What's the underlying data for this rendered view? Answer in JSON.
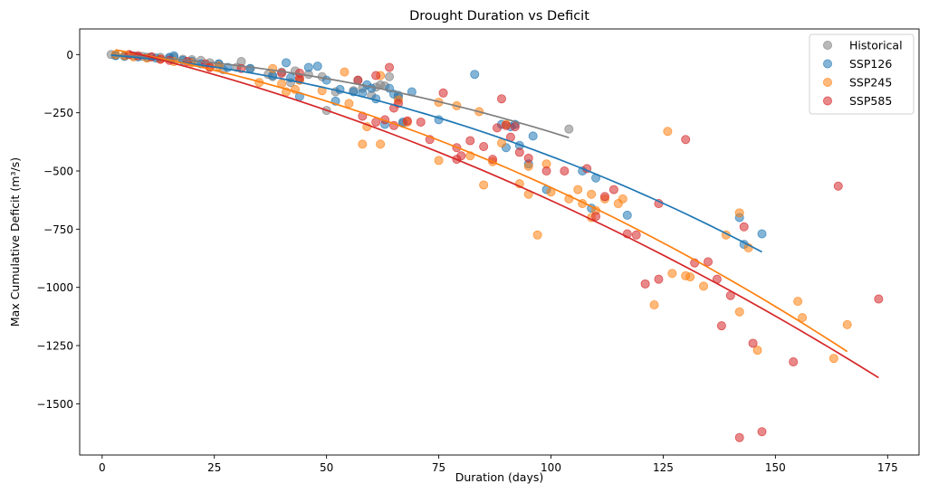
{
  "chart_data": {
    "type": "scatter",
    "title": "Drought Duration vs Deficit",
    "xlabel": "Duration (days)",
    "ylabel": "Max Cumulative Deficit (m³/s)",
    "xlim": [
      -5,
      182
    ],
    "ylim": [
      -1720,
      110
    ],
    "xticks": [
      0,
      25,
      50,
      75,
      100,
      125,
      150,
      175
    ],
    "yticks": [
      0,
      -250,
      -500,
      -750,
      -1000,
      -1250,
      -1500
    ],
    "xtick_labels": [
      "0",
      "25",
      "50",
      "75",
      "100",
      "125",
      "150",
      "175"
    ],
    "ytick_labels": [
      "0",
      "−250",
      "−500",
      "−750",
      "−1000",
      "−1250",
      "−1500"
    ],
    "legend_position": "top-right",
    "series": [
      {
        "name": "Historical",
        "color": "#7f7f7f",
        "points": [
          [
            2,
            0
          ],
          [
            3,
            -3
          ],
          [
            5,
            -5
          ],
          [
            7,
            -5
          ],
          [
            9,
            -8
          ],
          [
            11,
            -10
          ],
          [
            13,
            -12
          ],
          [
            15,
            -15
          ],
          [
            16,
            -12
          ],
          [
            18,
            -20
          ],
          [
            20,
            -22
          ],
          [
            22,
            -25
          ],
          [
            24,
            -35
          ],
          [
            26,
            -40
          ],
          [
            27,
            -65
          ],
          [
            30,
            -55
          ],
          [
            31,
            -30
          ],
          [
            33,
            -60
          ],
          [
            37,
            -85
          ],
          [
            38,
            -95
          ],
          [
            40,
            -75
          ],
          [
            42,
            -120
          ],
          [
            43,
            -70
          ],
          [
            44,
            -110
          ],
          [
            46,
            -85
          ],
          [
            49,
            -95
          ],
          [
            50,
            -240
          ],
          [
            52,
            -160
          ],
          [
            56,
            -155
          ],
          [
            57,
            -110
          ],
          [
            58,
            -145
          ],
          [
            60,
            -175
          ],
          [
            61,
            -140
          ],
          [
            62,
            -130
          ],
          [
            63,
            -135
          ],
          [
            64,
            -95
          ],
          [
            66,
            -185
          ],
          [
            67,
            -295
          ],
          [
            104,
            -320
          ]
        ],
        "fit_x": [
          2,
          104
        ],
        "fit_coeffs": [
          0,
          -0.8,
          -0.0253
        ]
      },
      {
        "name": "SSP126",
        "color": "#1f77b4",
        "points": [
          [
            3,
            -5
          ],
          [
            5,
            -8
          ],
          [
            8,
            -10
          ],
          [
            10,
            -12
          ],
          [
            12,
            -15
          ],
          [
            15,
            -12
          ],
          [
            16,
            -5
          ],
          [
            18,
            -25
          ],
          [
            20,
            -30
          ],
          [
            22,
            -40
          ],
          [
            26,
            -40
          ],
          [
            28,
            -55
          ],
          [
            33,
            -60
          ],
          [
            38,
            -90
          ],
          [
            41,
            -35
          ],
          [
            42,
            -100
          ],
          [
            44,
            -180
          ],
          [
            46,
            -55
          ],
          [
            48,
            -50
          ],
          [
            50,
            -110
          ],
          [
            52,
            -200
          ],
          [
            53,
            -150
          ],
          [
            56,
            -160
          ],
          [
            58,
            -165
          ],
          [
            59,
            -130
          ],
          [
            60,
            -145
          ],
          [
            61,
            -190
          ],
          [
            63,
            -300
          ],
          [
            64,
            -145
          ],
          [
            65,
            -170
          ],
          [
            66,
            -175
          ],
          [
            67,
            -290
          ],
          [
            69,
            -160
          ],
          [
            75,
            -280
          ],
          [
            83,
            -85
          ],
          [
            89,
            -300
          ],
          [
            90,
            -400
          ],
          [
            91,
            -310
          ],
          [
            92,
            -300
          ],
          [
            93,
            -390
          ],
          [
            95,
            -470
          ],
          [
            96,
            -350
          ],
          [
            99,
            -580
          ],
          [
            107,
            -500
          ],
          [
            109,
            -660
          ],
          [
            110,
            -530
          ],
          [
            117,
            -690
          ],
          [
            142,
            -700
          ],
          [
            143,
            -815
          ],
          [
            147,
            -770
          ]
        ],
        "fit_x": [
          2,
          147
        ],
        "fit_coeffs": [
          0,
          -1.4,
          -0.0297
        ]
      },
      {
        "name": "SSP245",
        "color": "#ff7f0e",
        "points": [
          [
            3,
            0
          ],
          [
            5,
            -5
          ],
          [
            7,
            -10
          ],
          [
            10,
            -15
          ],
          [
            13,
            -20
          ],
          [
            16,
            -30
          ],
          [
            20,
            -35
          ],
          [
            24,
            -55
          ],
          [
            26,
            -50
          ],
          [
            35,
            -120
          ],
          [
            38,
            -60
          ],
          [
            40,
            -125
          ],
          [
            41,
            -160
          ],
          [
            43,
            -150
          ],
          [
            44,
            -110
          ],
          [
            49,
            -155
          ],
          [
            54,
            -75
          ],
          [
            55,
            -210
          ],
          [
            58,
            -385
          ],
          [
            59,
            -310
          ],
          [
            62,
            -385
          ],
          [
            62,
            -90
          ],
          [
            66,
            -195
          ],
          [
            68,
            -290
          ],
          [
            75,
            -205
          ],
          [
            75,
            -455
          ],
          [
            79,
            -220
          ],
          [
            82,
            -435
          ],
          [
            84,
            -245
          ],
          [
            85,
            -560
          ],
          [
            87,
            -460
          ],
          [
            89,
            -380
          ],
          [
            90,
            -300
          ],
          [
            93,
            -555
          ],
          [
            95,
            -480
          ],
          [
            95,
            -600
          ],
          [
            97,
            -775
          ],
          [
            99,
            -470
          ],
          [
            100,
            -590
          ],
          [
            104,
            -620
          ],
          [
            106,
            -580
          ],
          [
            107,
            -640
          ],
          [
            109,
            -600
          ],
          [
            109,
            -700
          ],
          [
            110,
            -670
          ],
          [
            112,
            -620
          ],
          [
            115,
            -640
          ],
          [
            116,
            -620
          ],
          [
            123,
            -1075
          ],
          [
            126,
            -330
          ],
          [
            127,
            -940
          ],
          [
            130,
            -950
          ],
          [
            131,
            -955
          ],
          [
            134,
            -995
          ],
          [
            139,
            -775
          ],
          [
            142,
            -1105
          ],
          [
            142,
            -680
          ],
          [
            144,
            -830
          ],
          [
            146,
            -1270
          ],
          [
            155,
            -1060
          ],
          [
            156,
            -1130
          ],
          [
            163,
            -1305
          ],
          [
            166,
            -1160
          ]
        ],
        "fit_x": [
          3,
          166
        ],
        "fit_coeffs": [
          30,
          -3.2,
          -0.0281
        ]
      },
      {
        "name": "SSP585",
        "color": "#d62728",
        "points": [
          [
            6,
            0
          ],
          [
            8,
            -5
          ],
          [
            11,
            -10
          ],
          [
            13,
            -20
          ],
          [
            15,
            -25
          ],
          [
            19,
            -30
          ],
          [
            23,
            -40
          ],
          [
            24,
            -55
          ],
          [
            31,
            -60
          ],
          [
            40,
            -80
          ],
          [
            44,
            -80
          ],
          [
            44,
            -100
          ],
          [
            57,
            -110
          ],
          [
            58,
            -265
          ],
          [
            61,
            -90
          ],
          [
            61,
            -290
          ],
          [
            63,
            -280
          ],
          [
            64,
            -55
          ],
          [
            65,
            -230
          ],
          [
            65,
            -305
          ],
          [
            66,
            -210
          ],
          [
            68,
            -285
          ],
          [
            71,
            -290
          ],
          [
            73,
            -365
          ],
          [
            76,
            -165
          ],
          [
            79,
            -400
          ],
          [
            79,
            -450
          ],
          [
            80,
            -435
          ],
          [
            82,
            -370
          ],
          [
            85,
            -395
          ],
          [
            87,
            -450
          ],
          [
            88,
            -315
          ],
          [
            89,
            -190
          ],
          [
            90,
            -305
          ],
          [
            91,
            -355
          ],
          [
            92,
            -310
          ],
          [
            93,
            -420
          ],
          [
            95,
            -445
          ],
          [
            99,
            -500
          ],
          [
            103,
            -500
          ],
          [
            108,
            -490
          ],
          [
            110,
            -695
          ],
          [
            112,
            -610
          ],
          [
            114,
            -580
          ],
          [
            117,
            -770
          ],
          [
            119,
            -775
          ],
          [
            121,
            -985
          ],
          [
            124,
            -640
          ],
          [
            124,
            -965
          ],
          [
            130,
            -365
          ],
          [
            132,
            -895
          ],
          [
            135,
            -890
          ],
          [
            137,
            -965
          ],
          [
            138,
            -1165
          ],
          [
            140,
            -1035
          ],
          [
            142,
            -1645
          ],
          [
            143,
            -740
          ],
          [
            145,
            -1240
          ],
          [
            147,
            -1620
          ],
          [
            154,
            -1320
          ],
          [
            164,
            -565
          ],
          [
            173,
            -1050
          ]
        ],
        "fit_x": [
          6,
          173
        ],
        "fit_coeffs": [
          40,
          -4.5,
          -0.0217
        ]
      }
    ]
  }
}
